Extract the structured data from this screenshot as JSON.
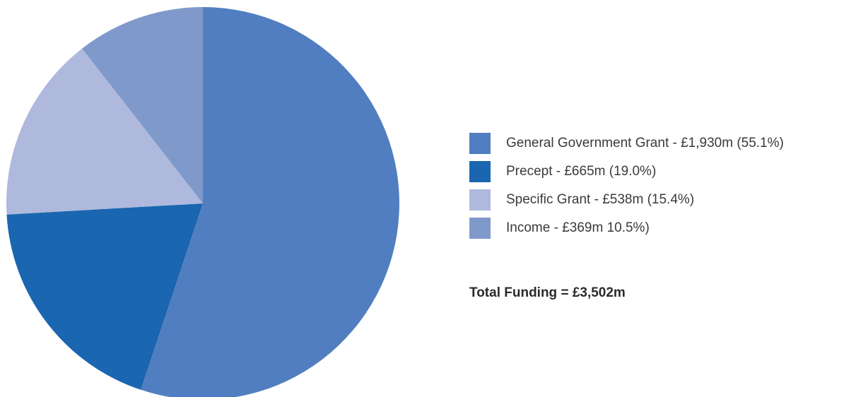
{
  "chart_data": {
    "type": "pie",
    "slices": [
      {
        "label": "General Government Grant - £1,930m (55.1%)",
        "value": 1930,
        "percent": 55.1,
        "color": "#517ec0"
      },
      {
        "label": "Precept - £665m (19.0%)",
        "value": 665,
        "percent": 19.0,
        "color": "#1a66b0"
      },
      {
        "label": "Specific Grant - £538m (15.4%)",
        "value": 538,
        "percent": 15.4,
        "color": "#aeb9dd"
      },
      {
        "label": "Income - £369m 10.5%)",
        "value": 369,
        "percent": 10.5,
        "color": "#7f99ca"
      }
    ],
    "start": "12 o'clock",
    "direction": "clockwise",
    "legend_position": "right",
    "total_label": "Total Funding = £3,502m"
  }
}
